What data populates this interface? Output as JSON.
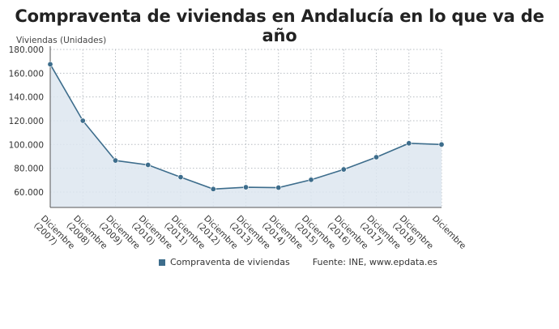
{
  "title": "Compraventa de viviendas en Andalucía en lo que va de año",
  "colors": {
    "line": "#3d6d8c",
    "area": "#dde6f0",
    "grid": "#b7bcc2",
    "axis": "#555555"
  },
  "legend": {
    "series_label": "Compraventa de viviendas",
    "source": "Fuente: INE, www.epdata.es"
  },
  "chart_data": {
    "type": "area",
    "title": "Compraventa de viviendas en Andalucía en lo que va de año",
    "ylabel": "Viviendas (Unidades)",
    "xlabel": "",
    "ylim": [
      47000,
      180000
    ],
    "yticks": [
      60000,
      80000,
      100000,
      120000,
      140000,
      160000,
      180000
    ],
    "ytick_labels": [
      "60.000",
      "80.000",
      "100.000",
      "120.000",
      "140.000",
      "160.000",
      "180.000"
    ],
    "grid": true,
    "legend_position": "bottom",
    "categories": [
      [
        "Diciembre",
        "(2007)"
      ],
      [
        "Diciembre",
        "(2008)"
      ],
      [
        "Diciembre",
        "(2009)"
      ],
      [
        "Diciembre",
        "(2010)"
      ],
      [
        "Diciembre",
        "(2011)"
      ],
      [
        "Diciembre",
        "(2012)"
      ],
      [
        "Diciembre",
        "(2013)"
      ],
      [
        "Diciembre",
        "(2014)"
      ],
      [
        "Diciembre",
        "(2015)"
      ],
      [
        "Diciembre",
        "(2016)"
      ],
      [
        "Diciembre",
        "(2017)"
      ],
      [
        "Diciembre",
        "(2018)"
      ],
      [
        "Diciembre"
      ]
    ],
    "series": [
      {
        "name": "Compraventa de viviendas",
        "values": [
          167500,
          120000,
          86500,
          82800,
          72500,
          62500,
          64000,
          63700,
          70300,
          79000,
          89300,
          101000,
          100000
        ]
      }
    ]
  }
}
